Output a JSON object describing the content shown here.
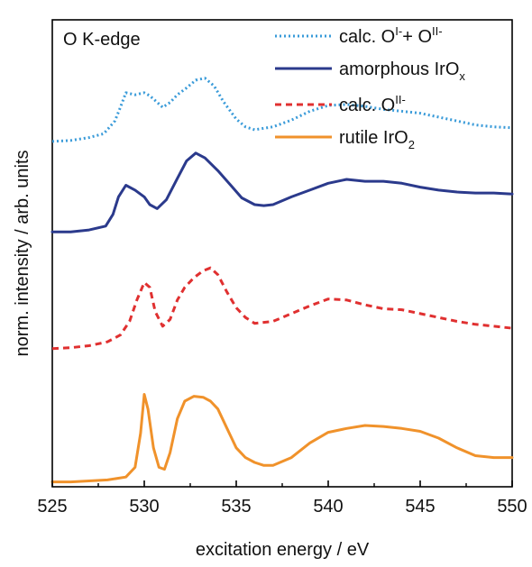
{
  "chart_data": {
    "type": "line",
    "title": "",
    "annotation": "O K-edge",
    "xlabel": "excitation energy / eV",
    "ylabel": "norm. intensity / arb. units",
    "xlim": [
      525,
      550
    ],
    "ylim": [
      0,
      4.8
    ],
    "x_ticks": [
      "525",
      "530",
      "535",
      "540",
      "545",
      "550"
    ],
    "y_ticks": [],
    "grid": false,
    "legend_position": "top-right",
    "series": [
      {
        "name_main": "calc. O",
        "name_sup1": "I-",
        "name_mid": "+ O",
        "name_sup2": "II-",
        "name_sub": "",
        "color": "#3a9bd9",
        "dash": "dotted",
        "x": [
          525,
          526,
          527,
          527.8,
          528.4,
          528.7,
          529,
          529.5,
          530,
          530.3,
          530.6,
          531,
          531.4,
          531.8,
          532.3,
          532.8,
          533.3,
          533.8,
          534.3,
          535,
          535.5,
          536,
          537,
          538,
          539,
          540,
          541,
          542,
          543,
          544,
          545,
          546,
          547,
          548,
          549,
          550
        ],
        "y": [
          3.55,
          3.56,
          3.59,
          3.63,
          3.76,
          3.9,
          4.05,
          4.03,
          4.05,
          4.02,
          3.97,
          3.9,
          3.95,
          4.03,
          4.1,
          4.18,
          4.2,
          4.12,
          3.96,
          3.78,
          3.7,
          3.67,
          3.7,
          3.77,
          3.86,
          3.92,
          3.93,
          3.91,
          3.88,
          3.86,
          3.84,
          3.8,
          3.76,
          3.72,
          3.7,
          3.69
        ]
      },
      {
        "name_main": "amorphous IrO",
        "name_sup1": "",
        "name_mid": "",
        "name_sup2": "",
        "name_sub": "x",
        "color": "#2b3a8c",
        "dash": "solid",
        "x": [
          525,
          526,
          527,
          527.9,
          528.3,
          528.6,
          529,
          529.5,
          530,
          530.3,
          530.7,
          531.2,
          531.8,
          532.3,
          532.8,
          533.3,
          534,
          534.7,
          535.3,
          536,
          536.5,
          537,
          538,
          539,
          540,
          541,
          542,
          543,
          544,
          545,
          546,
          547,
          548,
          549,
          550
        ],
        "y": [
          2.62,
          2.62,
          2.64,
          2.68,
          2.8,
          2.98,
          3.1,
          3.05,
          2.98,
          2.9,
          2.86,
          2.95,
          3.17,
          3.35,
          3.43,
          3.38,
          3.25,
          3.1,
          2.97,
          2.9,
          2.89,
          2.9,
          2.98,
          3.05,
          3.12,
          3.16,
          3.14,
          3.14,
          3.12,
          3.08,
          3.05,
          3.03,
          3.02,
          3.02,
          3.01
        ]
      },
      {
        "name_main": "calc. O",
        "name_sup1": "II-",
        "name_mid": "",
        "name_sup2": "",
        "name_sub": "",
        "color": "#e03030",
        "dash": "dashed",
        "x": [
          525,
          526,
          527,
          528,
          528.7,
          529.2,
          529.6,
          530,
          530.3,
          530.6,
          531,
          531.4,
          531.8,
          532.2,
          532.7,
          533.2,
          533.6,
          534,
          534.5,
          535,
          535.5,
          536,
          537,
          538,
          539,
          540,
          541,
          542,
          543,
          544,
          545,
          546,
          547,
          548,
          549,
          550
        ],
        "y": [
          1.42,
          1.43,
          1.45,
          1.49,
          1.56,
          1.7,
          1.92,
          2.1,
          2.05,
          1.8,
          1.65,
          1.72,
          1.92,
          2.05,
          2.15,
          2.22,
          2.25,
          2.18,
          2.0,
          1.84,
          1.74,
          1.68,
          1.7,
          1.78,
          1.86,
          1.93,
          1.92,
          1.87,
          1.83,
          1.82,
          1.78,
          1.74,
          1.7,
          1.67,
          1.65,
          1.63
        ]
      },
      {
        "name_main": "rutile IrO",
        "name_sup1": "",
        "name_mid": "",
        "name_sup2": "",
        "name_sub": "2",
        "color": "#f0922b",
        "dash": "solid",
        "x": [
          525,
          526,
          527,
          528,
          529,
          529.5,
          529.8,
          530,
          530.2,
          530.5,
          530.8,
          531.1,
          531.4,
          531.8,
          532.2,
          532.7,
          533.2,
          533.6,
          534,
          534.5,
          535,
          535.5,
          536,
          536.5,
          537,
          538,
          539,
          540,
          541,
          542,
          543,
          544,
          545,
          546,
          547,
          548,
          549,
          550
        ],
        "y": [
          0.05,
          0.05,
          0.06,
          0.07,
          0.1,
          0.2,
          0.55,
          0.95,
          0.8,
          0.4,
          0.2,
          0.18,
          0.35,
          0.7,
          0.88,
          0.93,
          0.92,
          0.88,
          0.8,
          0.6,
          0.4,
          0.3,
          0.25,
          0.22,
          0.22,
          0.3,
          0.45,
          0.56,
          0.6,
          0.63,
          0.62,
          0.6,
          0.57,
          0.5,
          0.4,
          0.32,
          0.3,
          0.3
        ]
      }
    ]
  }
}
